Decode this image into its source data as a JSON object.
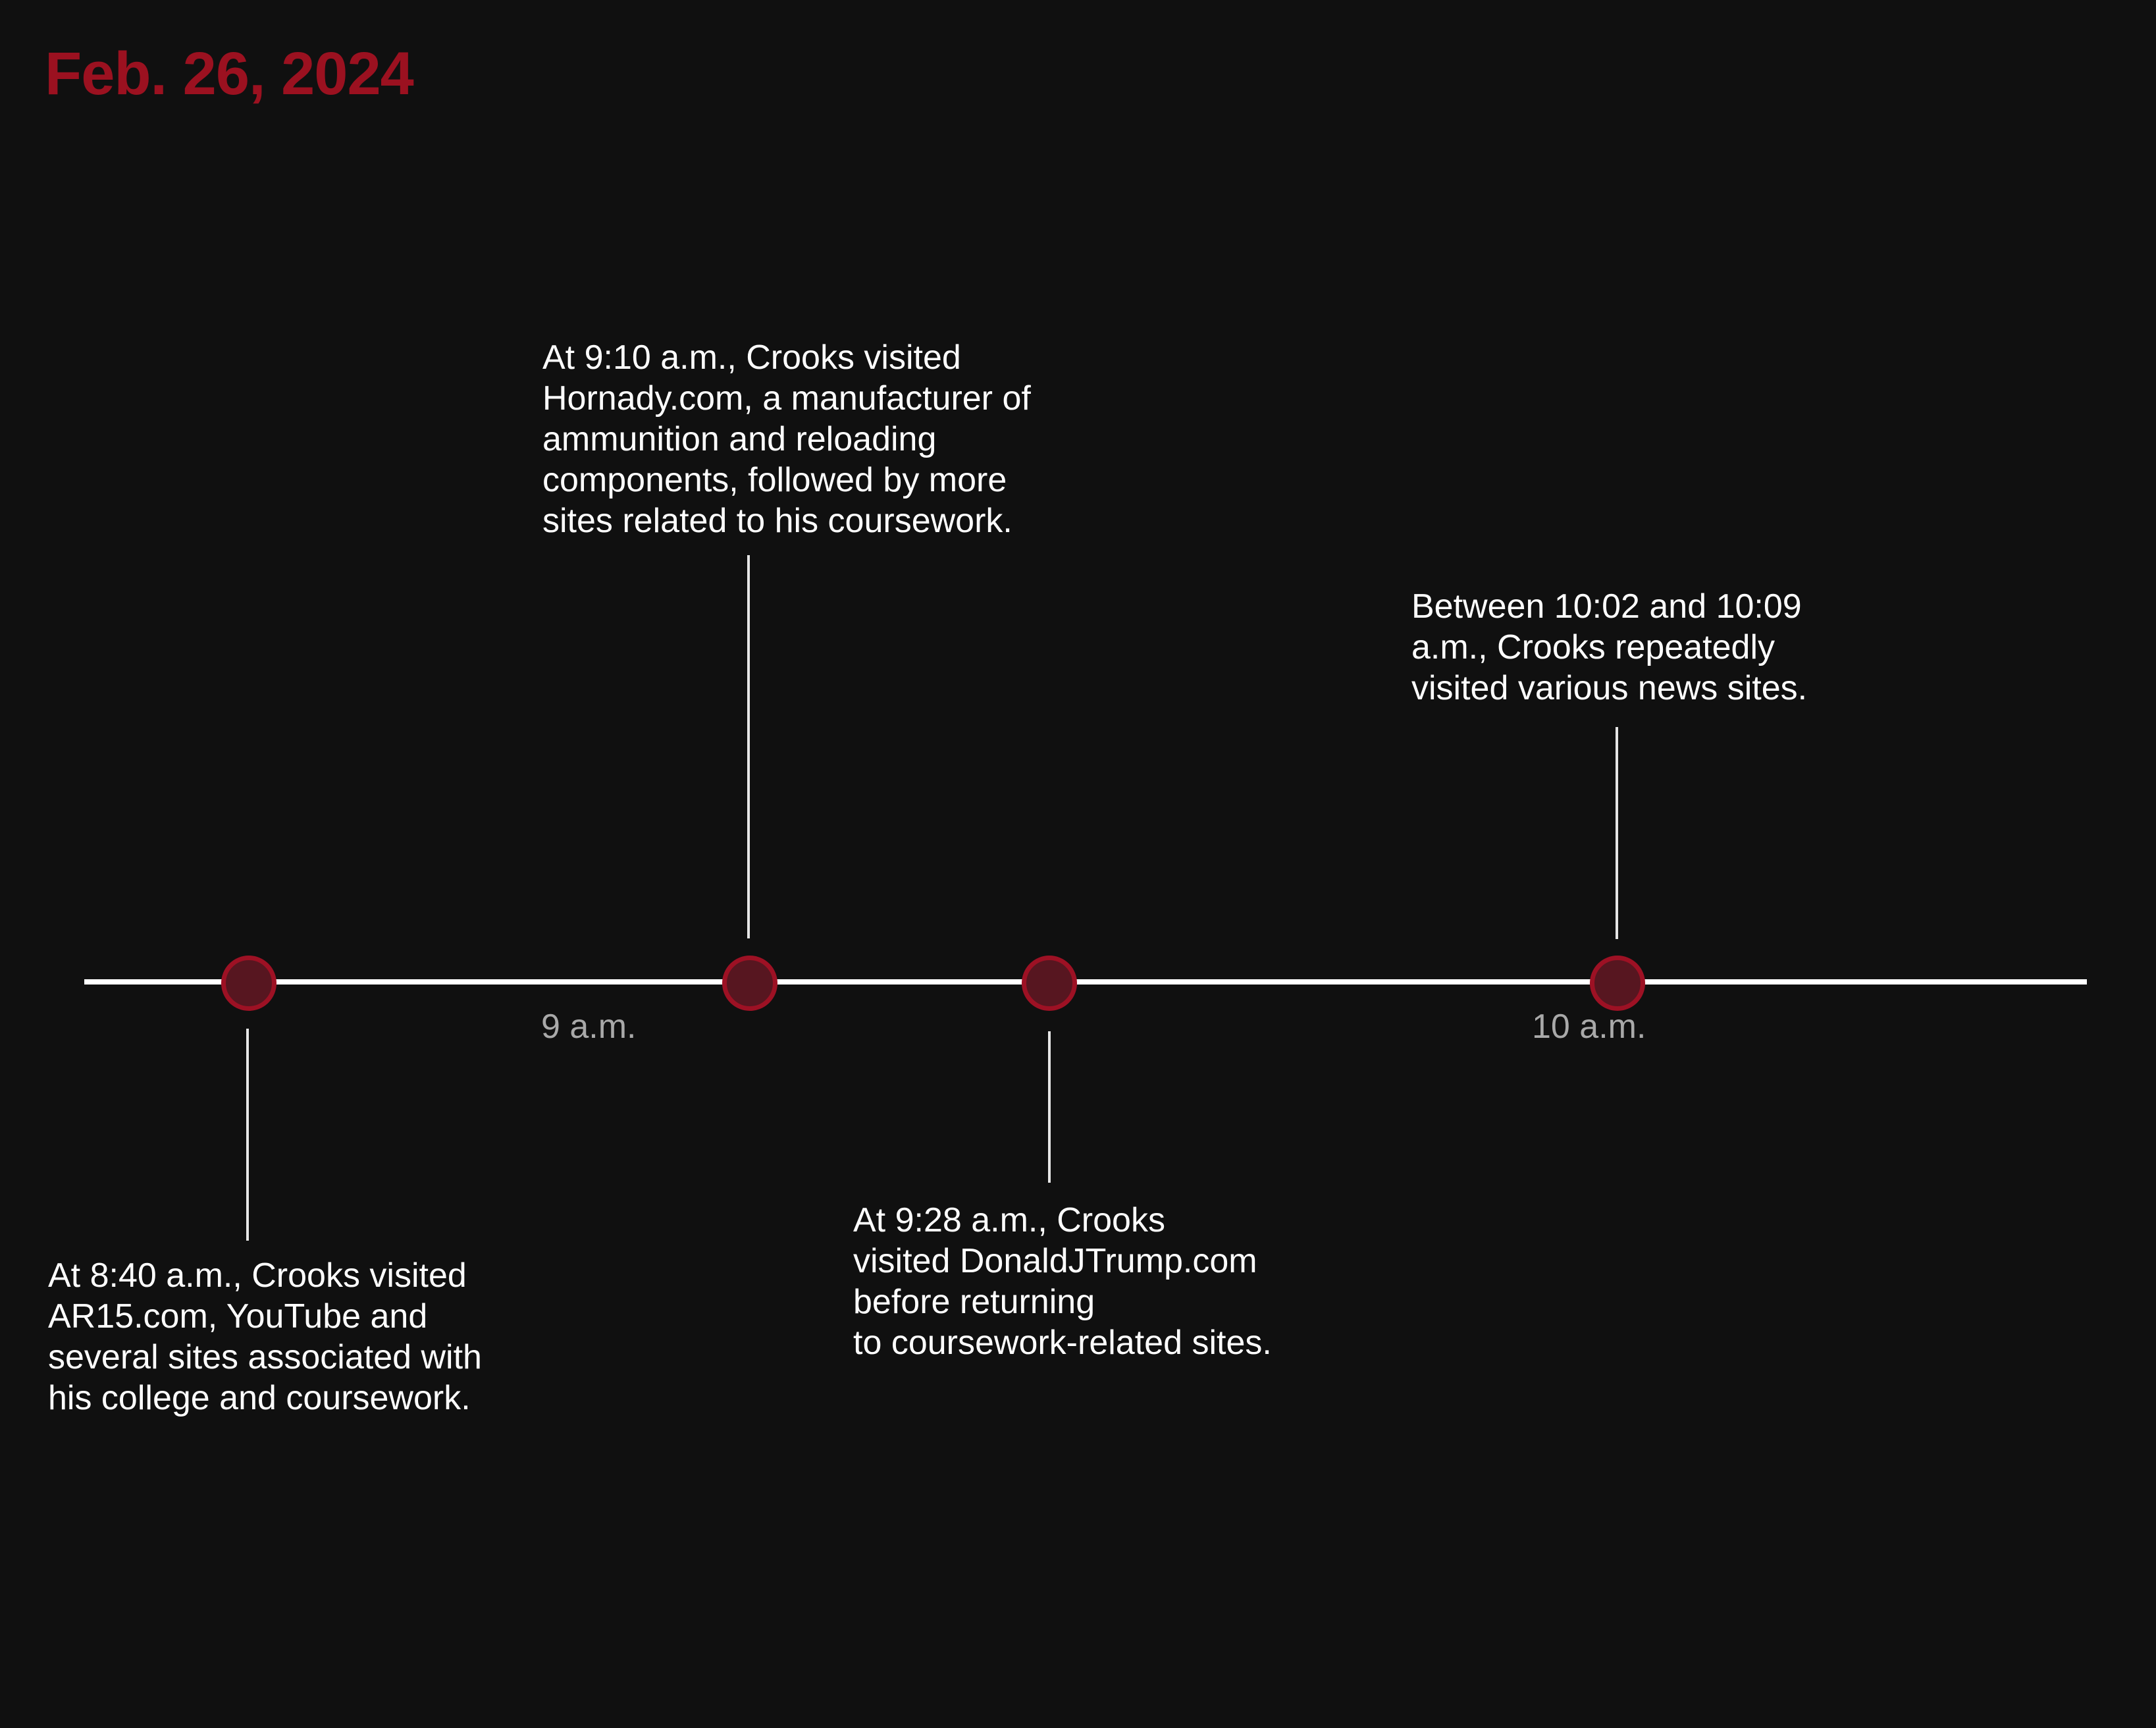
{
  "header": {
    "date": "Feb. 26, 2024"
  },
  "timeline": {
    "axis_labels": [
      "9 a.m.",
      "10 a.m."
    ],
    "events": [
      {
        "time": "8:40 a.m.",
        "text": "At 8:40 a.m., Crooks visited\nAR15.com, YouTube and\nseveral sites associated with\nhis college and coursework."
      },
      {
        "time": "9:10 a.m.",
        "text": "At 9:10 a.m., Crooks visited\nHornady.com, a manufacturer of\nammunition and reloading\ncomponents, followed by more\nsites related to his coursework."
      },
      {
        "time": "9:28 a.m.",
        "text": "At 9:28 a.m., Crooks\nvisited DonaldJTrump.com\nbefore returning\nto coursework-related sites."
      },
      {
        "time": "10:02–10:09 a.m.",
        "text": "Between 10:02 and 10:09\na.m., Crooks repeatedly\nvisited various news sites."
      }
    ]
  },
  "colors": {
    "background": "#101010",
    "accent": "#9b1120",
    "marker_fill": "#571620",
    "axis": "#ffffff",
    "tick_label": "#a9a9a9"
  }
}
